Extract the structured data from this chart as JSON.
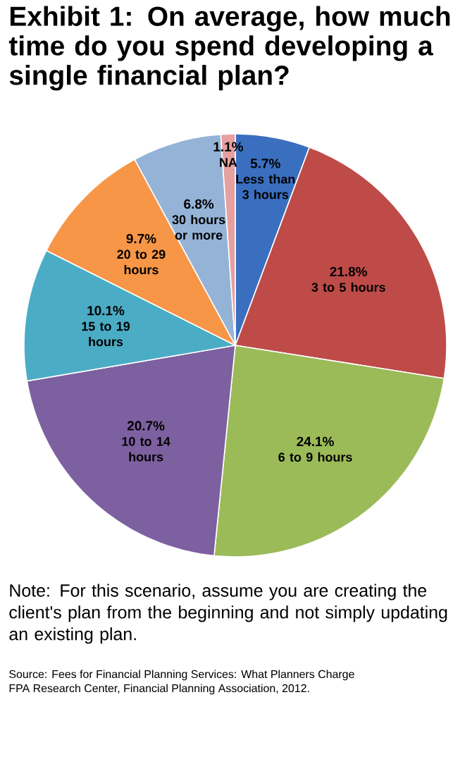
{
  "chart_data": {
    "type": "pie",
    "title": "Exhibit 1: On average, how much time do you spend developing a single financial plan?",
    "categories": [
      "Less than 3 hours",
      "3 to 5 hours",
      "6 to 9 hours",
      "10 to 14 hours",
      "15 to 19 hours",
      "20 to 29 hours",
      "30 hours or more",
      "NA"
    ],
    "values": [
      5.7,
      21.8,
      24.1,
      20.7,
      10.1,
      9.7,
      6.8,
      1.1
    ],
    "value_labels": [
      "5.7%",
      "21.8%",
      "24.1%",
      "20.7%",
      "10.1%",
      "9.7%",
      "6.8%",
      "1.1%"
    ],
    "colors": [
      "#3a6fc0",
      "#be4b48",
      "#9bbb59",
      "#7d60a0",
      "#4bacc6",
      "#f79646",
      "#95b3d7",
      "#e6a0a0"
    ],
    "annotations": [
      "Note: For this scenario, assume you are creating the client's plan from the beginning and not simply updating an existing plan.",
      "Source: Fees for Financial Planning Services: What Planners Charge",
      "FPA Research Center, Financial Planning Association, 2012."
    ]
  }
}
